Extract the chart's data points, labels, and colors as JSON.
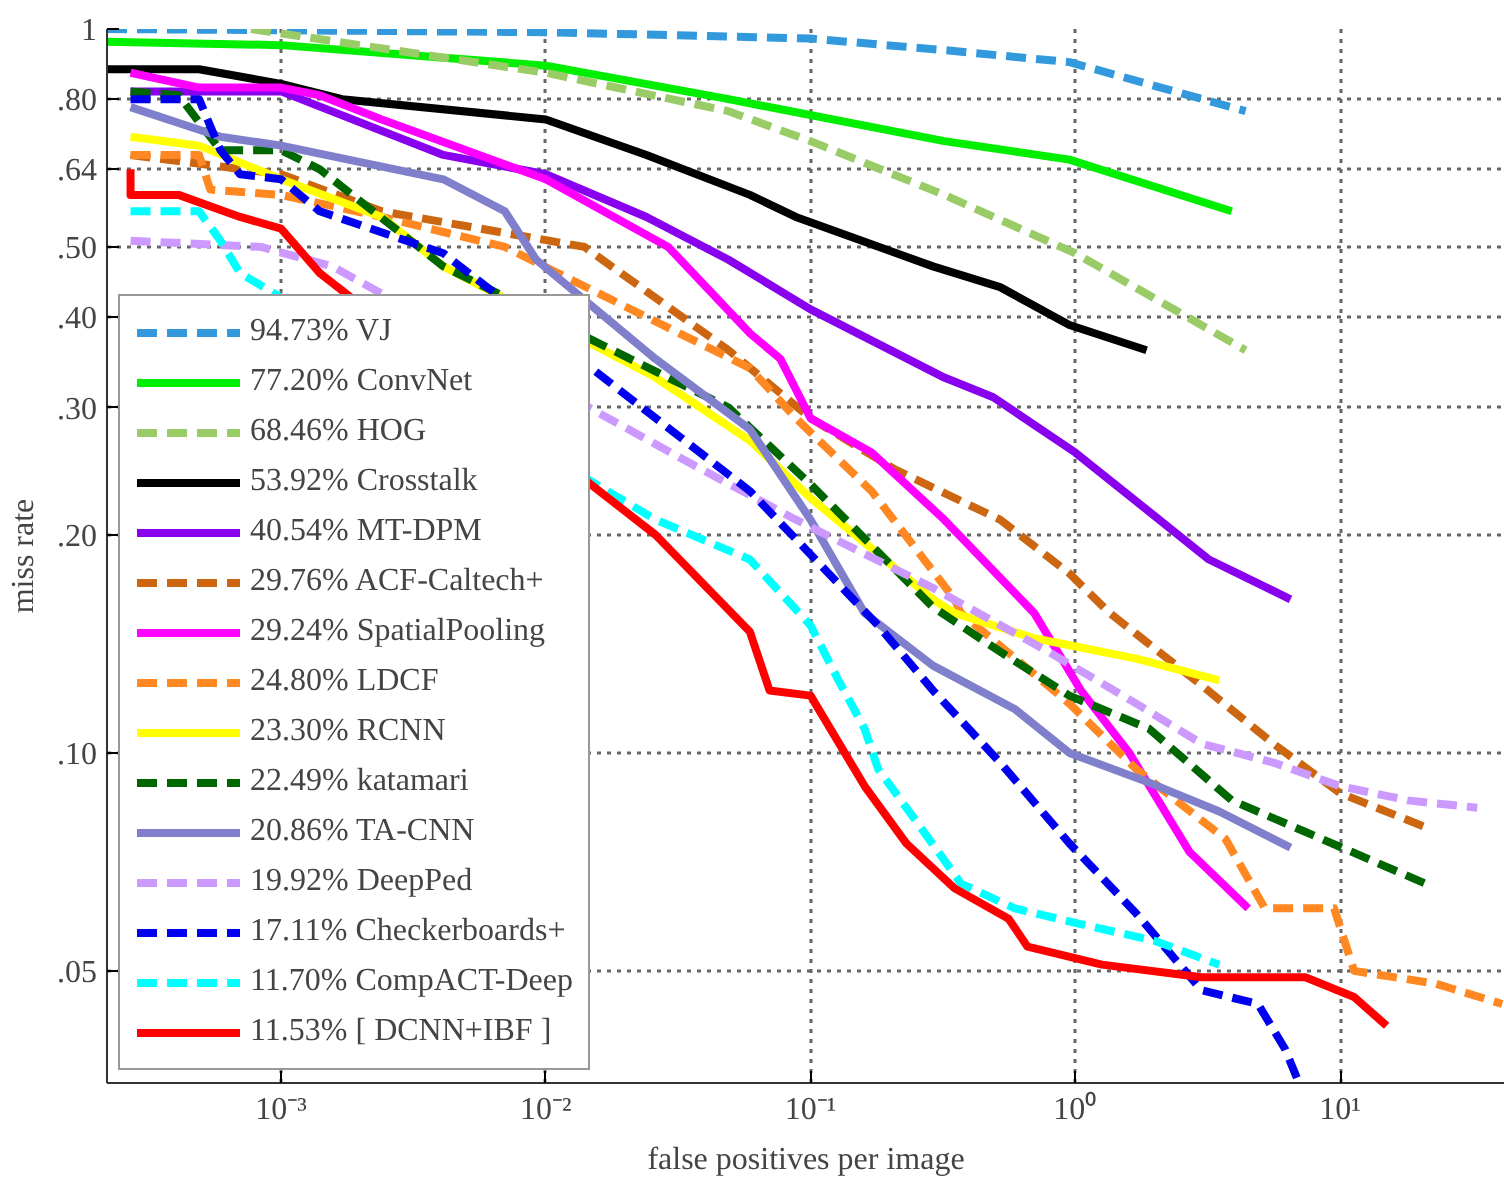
{
  "chart_data": {
    "type": "line",
    "xlabel": "false positives per image",
    "ylabel": "miss rate",
    "log": "xy",
    "grid": true,
    "legend": "bottom left",
    "xlim": [
      0.00022,
      42
    ],
    "ylim": [
      0.035,
      1.0
    ],
    "xticks": [
      {
        "value": 0.001,
        "label": "10⁻³"
      },
      {
        "value": 0.01,
        "label": "10⁻²"
      },
      {
        "value": 0.1,
        "label": "10⁻¹"
      },
      {
        "value": 1,
        "label": "10⁰"
      },
      {
        "value": 10,
        "label": "10¹"
      }
    ],
    "yticks": [
      {
        "value": 0.05,
        "label": ".05"
      },
      {
        "value": 0.1,
        "label": ".10"
      },
      {
        "value": 0.2,
        "label": ".20"
      },
      {
        "value": 0.3,
        "label": ".30"
      },
      {
        "value": 0.4,
        "label": ".40"
      },
      {
        "value": 0.5,
        "label": ".50"
      },
      {
        "value": 0.64,
        "label": ".64"
      },
      {
        "value": 0.8,
        "label": ".80"
      },
      1
    ],
    "series": [
      {
        "name": "94.73% VJ",
        "color": "#3399dd",
        "line_style": "dashed",
        "x": [
          0.00022,
          0.01,
          0.1,
          0.32,
          0.95,
          4.4
        ],
        "values": [
          1.0,
          0.99,
          0.97,
          0.935,
          0.9,
          0.77
        ]
      },
      {
        "name": "77.20% ConvNet",
        "color": "#00ee00",
        "line_style": "solid",
        "x": [
          0.00022,
          0.001,
          0.01,
          0.049,
          0.32,
          0.95,
          3.9
        ],
        "values": [
          0.96,
          0.95,
          0.89,
          0.8,
          0.7,
          0.66,
          0.56
        ]
      },
      {
        "name": "68.46% HOG",
        "color": "#99cc66",
        "line_style": "dashed",
        "x": [
          0.00077,
          0.01,
          0.049,
          0.1,
          0.32,
          1.0,
          4.4
        ],
        "values": [
          1.0,
          0.87,
          0.77,
          0.7,
          0.59,
          0.49,
          0.36
        ]
      },
      {
        "name": "53.92% Crosstalk",
        "color": "#000000",
        "line_style": "solid",
        "x": [
          0.00022,
          0.00049,
          0.001,
          0.0017,
          0.01,
          0.024,
          0.059,
          0.088,
          0.29,
          0.52,
          0.95,
          1.86
        ],
        "values": [
          0.88,
          0.88,
          0.84,
          0.8,
          0.75,
          0.67,
          0.59,
          0.55,
          0.47,
          0.44,
          0.39,
          0.36
        ]
      },
      {
        "name": "40.54% MT-DPM",
        "color": "#8800ee",
        "line_style": "solid",
        "x": [
          0.00027,
          0.001,
          0.0041,
          0.01,
          0.024,
          0.049,
          0.1,
          0.32,
          0.49,
          1.0,
          3.2,
          6.5
        ],
        "values": [
          0.82,
          0.82,
          0.67,
          0.63,
          0.55,
          0.48,
          0.41,
          0.33,
          0.31,
          0.26,
          0.185,
          0.163
        ]
      },
      {
        "name": "29.76% ACF-Caltech+",
        "color": "#cc6611",
        "line_style": "dashed",
        "x": [
          0.00027,
          0.001,
          0.0024,
          0.014,
          0.049,
          0.1,
          0.21,
          0.52,
          0.95,
          1.35,
          3.0,
          5.6,
          10,
          21
        ],
        "values": [
          0.67,
          0.63,
          0.56,
          0.5,
          0.36,
          0.29,
          0.246,
          0.21,
          0.177,
          0.156,
          0.124,
          0.103,
          0.088,
          0.079
        ]
      },
      {
        "name": "29.24% SpatialPooling",
        "color": "#ff00ff",
        "line_style": "solid",
        "x": [
          0.00027,
          0.00049,
          0.001,
          0.0014,
          0.0024,
          0.01,
          0.029,
          0.059,
          0.077,
          0.1,
          0.17,
          0.32,
          0.7,
          1.05,
          1.6,
          2.7,
          4.5
        ],
        "values": [
          0.87,
          0.83,
          0.83,
          0.81,
          0.75,
          0.62,
          0.5,
          0.38,
          0.35,
          0.29,
          0.26,
          0.21,
          0.156,
          0.122,
          0.1,
          0.073,
          0.061
        ]
      },
      {
        "name": "24.80% LDCF",
        "color": "#ff8822",
        "line_style": "dashed",
        "x": [
          0.00027,
          0.00049,
          0.00054,
          0.001,
          0.0024,
          0.007,
          0.059,
          0.088,
          0.17,
          0.35,
          0.37,
          0.95,
          1.7,
          3.7,
          5.2,
          9.5,
          11.3,
          23,
          41
        ],
        "values": [
          0.67,
          0.67,
          0.6,
          0.59,
          0.55,
          0.5,
          0.34,
          0.29,
          0.23,
          0.163,
          0.156,
          0.117,
          0.095,
          0.076,
          0.061,
          0.061,
          0.05,
          0.048,
          0.045
        ]
      },
      {
        "name": "23.30% RCNN",
        "color": "#ffff00",
        "line_style": "solid",
        "x": [
          0.00027,
          0.00049,
          0.001,
          0.0024,
          0.0041,
          0.026,
          0.059,
          0.1,
          0.29,
          0.35,
          0.7,
          1.7,
          3.5
        ],
        "values": [
          0.71,
          0.69,
          0.62,
          0.55,
          0.47,
          0.33,
          0.27,
          0.225,
          0.163,
          0.156,
          0.144,
          0.135,
          0.126
        ]
      },
      {
        "name": "22.49% katamari",
        "color": "#006600",
        "line_style": "dashed",
        "x": [
          0.00027,
          0.00041,
          0.00059,
          0.001,
          0.0014,
          0.0041,
          0.049,
          0.1,
          0.29,
          0.52,
          0.95,
          1.9,
          3.9,
          7.9,
          21
        ],
        "values": [
          0.82,
          0.81,
          0.68,
          0.68,
          0.64,
          0.47,
          0.3,
          0.235,
          0.159,
          0.138,
          0.12,
          0.108,
          0.086,
          0.077,
          0.066
        ]
      },
      {
        "name": "20.86% TA-CNN",
        "color": "#7f7fcc",
        "line_style": "solid",
        "x": [
          0.00027,
          0.00059,
          0.001,
          0.0041,
          0.007,
          0.0092,
          0.026,
          0.059,
          0.1,
          0.16,
          0.29,
          0.59,
          0.95,
          1.9,
          3.5,
          6.5
        ],
        "values": [
          0.78,
          0.71,
          0.69,
          0.62,
          0.56,
          0.48,
          0.35,
          0.28,
          0.21,
          0.156,
          0.132,
          0.115,
          0.1,
          0.091,
          0.083,
          0.074
        ]
      },
      {
        "name": "19.92% DeepPed",
        "color": "#cc99ff",
        "line_style": "dashed",
        "x": [
          0.00027,
          0.00084,
          0.00156,
          0.036,
          0.088,
          0.29,
          0.79,
          1.7,
          3.0,
          5.6,
          10,
          18,
          33
        ],
        "values": [
          0.51,
          0.5,
          0.47,
          0.25,
          0.21,
          0.169,
          0.138,
          0.117,
          0.103,
          0.097,
          0.09,
          0.086,
          0.084
        ]
      },
      {
        "name": "17.11% Checkerboards+",
        "color": "#0000ee",
        "line_style": "dashed",
        "x": [
          0.00027,
          0.00049,
          0.00059,
          0.0007,
          0.001,
          0.0014,
          0.0041,
          0.026,
          0.059,
          0.1,
          0.18,
          0.29,
          0.52,
          0.95,
          1.7,
          3.0,
          4.9,
          6.2,
          7.0
        ],
        "values": [
          0.8,
          0.8,
          0.68,
          0.63,
          0.62,
          0.56,
          0.49,
          0.29,
          0.23,
          0.188,
          0.15,
          0.122,
          0.097,
          0.075,
          0.06,
          0.047,
          0.045,
          0.039,
          0.035
        ]
      },
      {
        "name": "11.70% CompACT-Deep",
        "color": "#00ffff",
        "line_style": "dashed",
        "x": [
          0.00027,
          0.00049,
          0.00059,
          0.0007,
          0.026,
          0.059,
          0.1,
          0.126,
          0.16,
          0.18,
          0.26,
          0.37,
          0.59,
          1.05,
          2.0,
          3.5
        ],
        "values": [
          0.56,
          0.56,
          0.51,
          0.46,
          0.21,
          0.185,
          0.15,
          0.127,
          0.108,
          0.095,
          0.079,
          0.066,
          0.061,
          0.058,
          0.055,
          0.051
        ]
      },
      {
        "name": "11.53% [ DCNN+IBF ]",
        "color": "#ff0000",
        "line_style": "solid",
        "x": [
          0.00027,
          0.00027,
          0.00041,
          0.0007,
          0.001,
          0.0014,
          0.026,
          0.059,
          0.07,
          0.1,
          0.16,
          0.23,
          0.35,
          0.56,
          0.66,
          1.26,
          3.0,
          7.4,
          11.3,
          15
        ],
        "values": [
          0.64,
          0.59,
          0.59,
          0.55,
          0.53,
          0.46,
          0.2,
          0.147,
          0.122,
          0.12,
          0.09,
          0.075,
          0.065,
          0.059,
          0.054,
          0.051,
          0.049,
          0.049,
          0.046,
          0.042
        ]
      }
    ]
  }
}
